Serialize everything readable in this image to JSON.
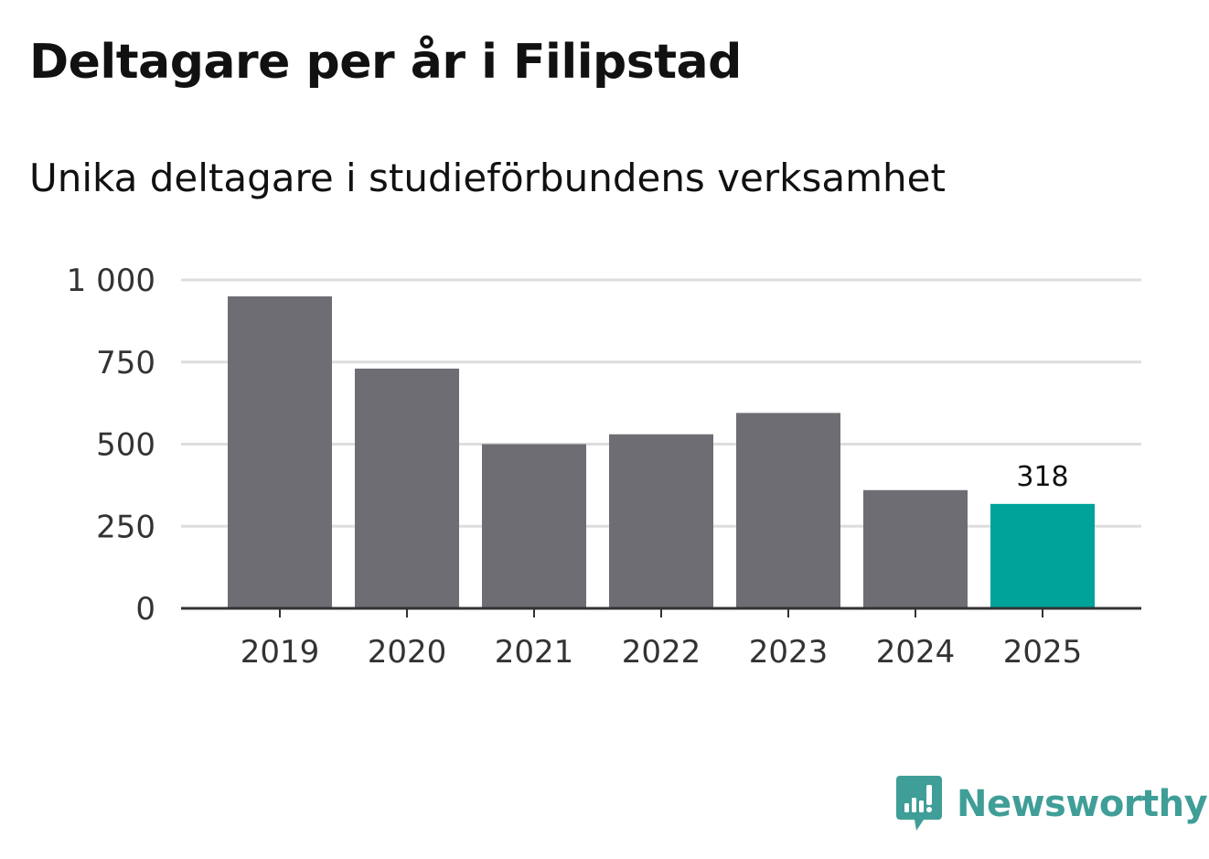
{
  "header": {
    "title": "Deltagare per år i Filipstad",
    "subtitle": "Unika deltagare i studieförbundens verksamhet"
  },
  "chart_data": {
    "type": "bar",
    "title": "Deltagare per år i Filipstad",
    "subtitle": "Unika deltagare i studieförbundens verksamhet",
    "categories": [
      "2019",
      "2020",
      "2021",
      "2022",
      "2023",
      "2024",
      "2025"
    ],
    "values": [
      950,
      730,
      500,
      530,
      595,
      360,
      318
    ],
    "ylim": [
      0,
      1000
    ],
    "yticks": [
      0,
      250,
      500,
      750,
      1000
    ],
    "ytick_labels": [
      "0",
      "250",
      "500",
      "750",
      "1 000"
    ],
    "xlabel": "",
    "ylabel": "",
    "grid": true,
    "highlight_index": 6,
    "data_labels": [
      {
        "index": 6,
        "text": "318"
      }
    ],
    "colors": {
      "bar": "#6e6d73",
      "highlight": "#00a39a",
      "grid": "#dddddd",
      "axis": "#333333",
      "tick_text": "#333333"
    }
  },
  "branding": {
    "name": "Newsworthy",
    "icon": "newsworthy-logo-icon",
    "color": "#3f9e97"
  }
}
